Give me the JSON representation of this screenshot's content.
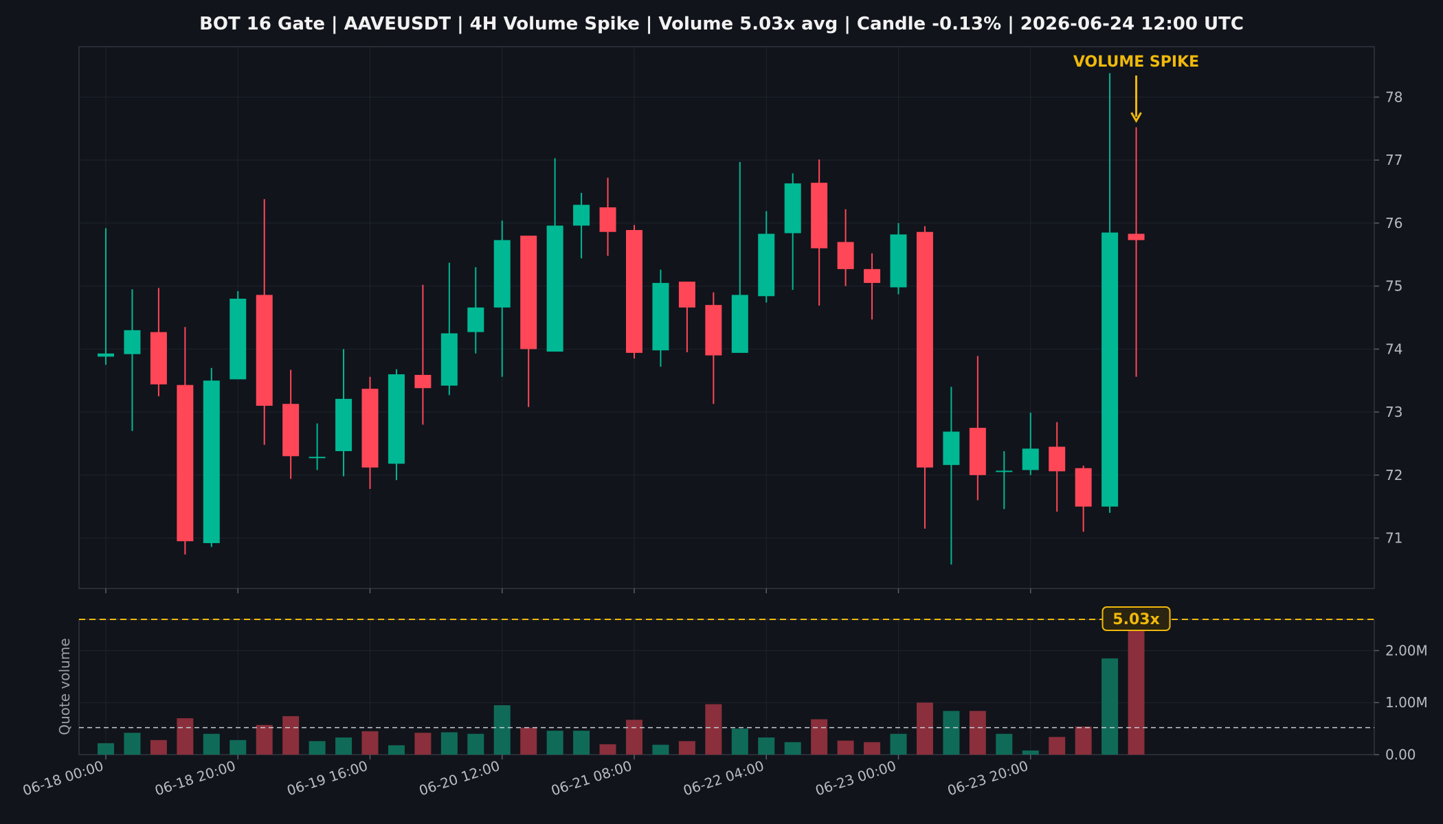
{
  "title": "BOT 16 Gate | AAVEUSDT | 4H Volume Spike | Volume 5.03x avg | Candle -0.13% | 2026-06-24 12:00 UTC",
  "colors": {
    "background": "#11141b",
    "up": "#00b894",
    "down": "#ff4757",
    "accent": "#f0b90b",
    "grid": "#1f232c",
    "axis_text": "#b8bcc4"
  },
  "chart_data": [
    {
      "type": "candlestick",
      "price_ticks": [
        "71",
        "72",
        "73",
        "74",
        "75",
        "76",
        "77",
        "78"
      ],
      "ylim": [
        70.2,
        78.8
      ],
      "x_tick_labels": [
        "06-18 00:00",
        "06-18 20:00",
        "06-19 16:00",
        "06-20 12:00",
        "06-21 08:00",
        "06-22 04:00",
        "06-23 00:00",
        "06-23 20:00"
      ],
      "annotation": "VOLUME SPIKE",
      "candles": [
        {
          "t": "06-18 00:00",
          "o": 73.88,
          "h": 75.92,
          "l": 73.75,
          "c": 73.93
        },
        {
          "t": "06-18 04:00",
          "o": 73.92,
          "h": 74.95,
          "l": 72.7,
          "c": 74.3
        },
        {
          "t": "06-18 08:00",
          "o": 74.27,
          "h": 74.97,
          "l": 73.25,
          "c": 73.44
        },
        {
          "t": "06-18 12:00",
          "o": 73.43,
          "h": 74.35,
          "l": 70.74,
          "c": 70.95
        },
        {
          "t": "06-18 16:00",
          "o": 70.92,
          "h": 73.7,
          "l": 70.86,
          "c": 73.5
        },
        {
          "t": "06-18 20:00",
          "o": 73.52,
          "h": 74.92,
          "l": 73.52,
          "c": 74.8
        },
        {
          "t": "06-19 00:00",
          "o": 74.86,
          "h": 76.38,
          "l": 72.48,
          "c": 73.1
        },
        {
          "t": "06-19 04:00",
          "o": 73.13,
          "h": 73.67,
          "l": 71.94,
          "c": 72.3
        },
        {
          "t": "06-19 08:00",
          "o": 72.28,
          "h": 72.82,
          "l": 72.08,
          "c": 72.29
        },
        {
          "t": "06-19 12:00",
          "o": 72.38,
          "h": 74.0,
          "l": 71.98,
          "c": 73.21
        },
        {
          "t": "06-19 16:00",
          "o": 73.37,
          "h": 73.56,
          "l": 71.78,
          "c": 72.12
        },
        {
          "t": "06-19 20:00",
          "o": 72.18,
          "h": 73.68,
          "l": 71.92,
          "c": 73.6
        },
        {
          "t": "06-20 00:00",
          "o": 73.59,
          "h": 75.02,
          "l": 72.8,
          "c": 73.38
        },
        {
          "t": "06-20 04:00",
          "o": 73.42,
          "h": 75.37,
          "l": 73.27,
          "c": 74.25
        },
        {
          "t": "06-20 08:00",
          "o": 74.27,
          "h": 75.3,
          "l": 73.93,
          "c": 74.66
        },
        {
          "t": "06-20 12:00",
          "o": 74.66,
          "h": 76.04,
          "l": 73.56,
          "c": 75.73
        },
        {
          "t": "06-20 16:00",
          "o": 75.8,
          "h": 75.8,
          "l": 73.08,
          "c": 74.0
        },
        {
          "t": "06-20 20:00",
          "o": 73.96,
          "h": 77.03,
          "l": 73.96,
          "c": 75.96
        },
        {
          "t": "06-21 00:00",
          "o": 75.96,
          "h": 76.48,
          "l": 75.44,
          "c": 76.29
        },
        {
          "t": "06-21 04:00",
          "o": 76.25,
          "h": 76.72,
          "l": 75.48,
          "c": 75.86
        },
        {
          "t": "06-21 08:00",
          "o": 75.89,
          "h": 75.97,
          "l": 73.85,
          "c": 73.94
        },
        {
          "t": "06-21 12:00",
          "o": 73.98,
          "h": 75.26,
          "l": 73.72,
          "c": 75.05
        },
        {
          "t": "06-21 16:00",
          "o": 75.07,
          "h": 75.07,
          "l": 73.95,
          "c": 74.66
        },
        {
          "t": "06-21 20:00",
          "o": 74.7,
          "h": 74.9,
          "l": 73.13,
          "c": 73.9
        },
        {
          "t": "06-22 00:00",
          "o": 73.94,
          "h": 76.97,
          "l": 73.94,
          "c": 74.86
        },
        {
          "t": "06-22 04:00",
          "o": 74.84,
          "h": 76.19,
          "l": 74.74,
          "c": 75.83
        },
        {
          "t": "06-22 08:00",
          "o": 75.84,
          "h": 76.79,
          "l": 74.94,
          "c": 76.63
        },
        {
          "t": "06-22 12:00",
          "o": 76.64,
          "h": 77.01,
          "l": 74.69,
          "c": 75.6
        },
        {
          "t": "06-22 16:00",
          "o": 75.7,
          "h": 76.22,
          "l": 75.0,
          "c": 75.27
        },
        {
          "t": "06-22 20:00",
          "o": 75.27,
          "h": 75.52,
          "l": 74.47,
          "c": 75.05
        },
        {
          "t": "06-23 00:00",
          "o": 74.98,
          "h": 76.0,
          "l": 74.87,
          "c": 75.82
        },
        {
          "t": "06-23 04:00",
          "o": 75.86,
          "h": 75.95,
          "l": 71.15,
          "c": 72.12
        },
        {
          "t": "06-23 08:00",
          "o": 72.16,
          "h": 73.4,
          "l": 70.58,
          "c": 72.69
        },
        {
          "t": "06-23 12:00",
          "o": 72.75,
          "h": 73.89,
          "l": 71.6,
          "c": 72.0
        },
        {
          "t": "06-23 16:00",
          "o": 72.06,
          "h": 72.38,
          "l": 71.46,
          "c": 72.07
        },
        {
          "t": "06-23 20:00",
          "o": 72.08,
          "h": 72.99,
          "l": 72.0,
          "c": 72.42
        },
        {
          "t": "06-24 00:00",
          "o": 72.45,
          "h": 72.84,
          "l": 71.42,
          "c": 72.06
        },
        {
          "t": "06-24 04:00",
          "o": 72.11,
          "h": 72.15,
          "l": 71.1,
          "c": 71.5
        },
        {
          "t": "06-24 08:00",
          "o": 71.5,
          "h": 78.38,
          "l": 71.4,
          "c": 75.85
        },
        {
          "t": "06-24 12:00",
          "o": 75.83,
          "h": 77.52,
          "l": 73.56,
          "c": 75.73
        }
      ]
    },
    {
      "type": "bar",
      "ylabel": "Quote volume",
      "y_ticks": [
        "0.00",
        "1.00M",
        "2.00M"
      ],
      "ylim": [
        0,
        2.6
      ],
      "unit": "M",
      "average": 0.52,
      "spike_threshold": 2.6,
      "spike_label": "5.03x",
      "values": [
        0.22,
        0.42,
        0.28,
        0.7,
        0.4,
        0.28,
        0.57,
        0.74,
        0.26,
        0.33,
        0.45,
        0.18,
        0.42,
        0.43,
        0.4,
        0.95,
        0.52,
        0.46,
        0.46,
        0.2,
        0.67,
        0.19,
        0.26,
        0.97,
        0.5,
        0.33,
        0.24,
        0.68,
        0.27,
        0.24,
        0.4,
        1.0,
        0.84,
        0.84,
        0.4,
        0.08,
        0.34,
        0.54,
        1.85,
        2.62
      ]
    }
  ]
}
